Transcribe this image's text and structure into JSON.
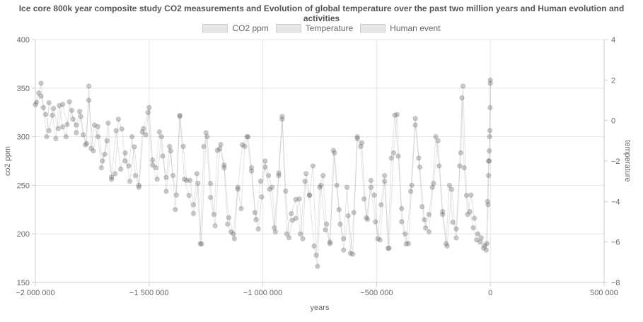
{
  "chart_data": {
    "type": "scatter",
    "title": "Ice core 800k year composite study CO2 measurements and Evolution of global temperature over the past two million years and Human evolution and activities",
    "xlabel": "years",
    "ylabel_left": "co2 ppm",
    "ylabel_right": "temperature",
    "xlim": [
      -2000000,
      500000
    ],
    "ylim_left": [
      150,
      400
    ],
    "ylim_right": [
      -8,
      4
    ],
    "x_ticks": [
      {
        "value": -2000000,
        "label": "−2 000 000"
      },
      {
        "value": -1500000,
        "label": "−1 500 000"
      },
      {
        "value": -1000000,
        "label": "−1 000 000"
      },
      {
        "value": -500000,
        "label": "−500 000"
      },
      {
        "value": 0,
        "label": "0"
      },
      {
        "value": 500000,
        "label": "500 000"
      }
    ],
    "y_left_ticks": [
      {
        "value": 150,
        "label": "150"
      },
      {
        "value": 200,
        "label": "200"
      },
      {
        "value": 250,
        "label": "250"
      },
      {
        "value": 300,
        "label": "300"
      },
      {
        "value": 350,
        "label": "350"
      },
      {
        "value": 400,
        "label": "400"
      }
    ],
    "y_right_ticks": [
      {
        "value": -8,
        "label": "−8"
      },
      {
        "value": -6,
        "label": "−6"
      },
      {
        "value": -4,
        "label": "−4"
      },
      {
        "value": -2,
        "label": "−2"
      },
      {
        "value": 0,
        "label": "0"
      },
      {
        "value": 2,
        "label": "2"
      },
      {
        "value": 4,
        "label": "4"
      }
    ],
    "grid": true,
    "legend_position": "top",
    "legend": [
      "CO2 ppm",
      "Temperature",
      "Human event"
    ],
    "point_color": "#666666",
    "series": [
      {
        "name": "CO2 ppm",
        "axis": "left",
        "points": [
          [
            -2000000,
            333
          ],
          [
            -1985000,
            345
          ],
          [
            -1975000,
            355
          ],
          [
            -1965000,
            330
          ],
          [
            -1950000,
            300
          ],
          [
            -1940000,
            335
          ],
          [
            -1925000,
            322
          ],
          [
            -1910000,
            298
          ],
          [
            -1895000,
            332
          ],
          [
            -1880000,
            310
          ],
          [
            -1865000,
            300
          ],
          [
            -1850000,
            336
          ],
          [
            -1835000,
            318
          ],
          [
            -1820000,
            312
          ],
          [
            -1805000,
            326
          ],
          [
            -1790000,
            302
          ],
          [
            -1775000,
            293
          ],
          [
            -1765000,
            352
          ],
          [
            -1755000,
            288
          ],
          [
            -1740000,
            312
          ],
          [
            -1725000,
            300
          ],
          [
            -1710000,
            268
          ],
          [
            -1695000,
            282
          ],
          [
            -1680000,
            314
          ],
          [
            -1665000,
            256
          ],
          [
            -1650000,
            262
          ],
          [
            -1635000,
            318
          ],
          [
            -1620000,
            308
          ],
          [
            -1605000,
            275
          ],
          [
            -1590000,
            270
          ],
          [
            -1575000,
            300
          ],
          [
            -1560000,
            260
          ],
          [
            -1545000,
            250
          ],
          [
            -1530000,
            305
          ],
          [
            -1515000,
            302
          ],
          [
            -1500000,
            330
          ],
          [
            -1485000,
            276
          ],
          [
            -1470000,
            268
          ],
          [
            -1455000,
            305
          ],
          [
            -1440000,
            280
          ],
          [
            -1425000,
            258
          ],
          [
            -1410000,
            290
          ],
          [
            -1395000,
            260
          ],
          [
            -1380000,
            240
          ],
          [
            -1365000,
            322
          ],
          [
            -1350000,
            290
          ],
          [
            -1335000,
            255
          ],
          [
            -1320000,
            255
          ],
          [
            -1305000,
            230
          ],
          [
            -1290000,
            262
          ],
          [
            -1275000,
            190
          ],
          [
            -1260000,
            290
          ],
          [
            -1245000,
            300
          ],
          [
            -1230000,
            252
          ],
          [
            -1215000,
            220
          ],
          [
            -1200000,
            286
          ],
          [
            -1185000,
            292
          ],
          [
            -1170000,
            268
          ],
          [
            -1155000,
            210
          ],
          [
            -1140000,
            202
          ],
          [
            -1125000,
            195
          ],
          [
            -1110000,
            246
          ],
          [
            -1095000,
            226
          ],
          [
            -1080000,
            290
          ],
          [
            -1065000,
            300
          ],
          [
            -1050000,
            268
          ],
          [
            -1035000,
            222
          ],
          [
            -1020000,
            205
          ],
          [
            -1005000,
            238
          ],
          [
            -990000,
            275
          ],
          [
            -975000,
            260
          ],
          [
            -960000,
            248
          ],
          [
            -945000,
            202
          ],
          [
            -930000,
            260
          ],
          [
            -915000,
            318
          ],
          [
            -900000,
            244
          ],
          [
            -885000,
            196
          ],
          [
            -870000,
            214
          ],
          [
            -855000,
            216
          ],
          [
            -840000,
            236
          ],
          [
            -825000,
            195
          ],
          [
            -810000,
            262
          ],
          [
            -795000,
            240
          ],
          [
            -780000,
            270
          ],
          [
            -765000,
            178
          ],
          [
            -750000,
            248
          ],
          [
            -735000,
            260
          ],
          [
            -720000,
            210
          ],
          [
            -705000,
            190
          ],
          [
            -690000,
            286
          ],
          [
            -675000,
            250
          ],
          [
            -660000,
            210
          ],
          [
            -645000,
            195
          ],
          [
            -630000,
            248
          ],
          [
            -615000,
            180
          ],
          [
            -600000,
            222
          ],
          [
            -585000,
            298
          ],
          [
            -570000,
            290
          ],
          [
            -555000,
            236
          ],
          [
            -540000,
            215
          ],
          [
            -525000,
            255
          ],
          [
            -510000,
            240
          ],
          [
            -495000,
            195
          ],
          [
            -480000,
            230
          ],
          [
            -465000,
            260
          ],
          [
            -450000,
            185
          ],
          [
            -435000,
            278
          ],
          [
            -420000,
            322
          ],
          [
            -405000,
            280
          ],
          [
            -390000,
            226
          ],
          [
            -375000,
            200
          ],
          [
            -360000,
            190
          ],
          [
            -345000,
            250
          ],
          [
            -330000,
            312
          ],
          [
            -315000,
            278
          ],
          [
            -300000,
            228
          ],
          [
            -285000,
            206
          ],
          [
            -270000,
            220
          ],
          [
            -255000,
            248
          ],
          [
            -240000,
            300
          ],
          [
            -225000,
            270
          ],
          [
            -210000,
            220
          ],
          [
            -195000,
            190
          ],
          [
            -180000,
            250
          ],
          [
            -165000,
            212
          ],
          [
            -150000,
            205
          ],
          [
            -135000,
            270
          ],
          [
            -125000,
            340
          ],
          [
            -115000,
            268
          ],
          [
            -100000,
            220
          ],
          [
            -85000,
            240
          ],
          [
            -70000,
            216
          ],
          [
            -55000,
            200
          ],
          [
            -40000,
            196
          ],
          [
            -25000,
            188
          ],
          [
            -15000,
            190
          ],
          [
            -10000,
            230
          ],
          [
            -8000,
            260
          ],
          [
            -5000,
            275
          ],
          [
            -3000,
            300
          ],
          [
            -1000,
            330
          ],
          [
            0,
            355
          ]
        ]
      },
      {
        "name": "Temperature",
        "axis": "right",
        "points": [
          [
            -1995000,
            0.9
          ],
          [
            -1975000,
            1.2
          ],
          [
            -1955000,
            0.3
          ],
          [
            -1940000,
            -0.5
          ],
          [
            -1920000,
            0.6
          ],
          [
            -1900000,
            -0.4
          ],
          [
            -1880000,
            0.8
          ],
          [
            -1860000,
            -0.2
          ],
          [
            -1840000,
            0.5
          ],
          [
            -1820000,
            -0.6
          ],
          [
            -1800000,
            0.2
          ],
          [
            -1780000,
            -1.2
          ],
          [
            -1765000,
            1.0
          ],
          [
            -1745000,
            -1.5
          ],
          [
            -1725000,
            -0.3
          ],
          [
            -1705000,
            -2.0
          ],
          [
            -1685000,
            -1.0
          ],
          [
            -1665000,
            -2.8
          ],
          [
            -1645000,
            -0.5
          ],
          [
            -1625000,
            -2.4
          ],
          [
            -1605000,
            -1.6
          ],
          [
            -1585000,
            -3.0
          ],
          [
            -1565000,
            -1.3
          ],
          [
            -1545000,
            -3.3
          ],
          [
            -1525000,
            -0.4
          ],
          [
            -1505000,
            0.4
          ],
          [
            -1485000,
            -2.2
          ],
          [
            -1465000,
            -2.9
          ],
          [
            -1445000,
            -0.8
          ],
          [
            -1425000,
            -3.5
          ],
          [
            -1405000,
            -1.5
          ],
          [
            -1385000,
            -4.4
          ],
          [
            -1365000,
            0.2
          ],
          [
            -1345000,
            -2.9
          ],
          [
            -1325000,
            -3.7
          ],
          [
            -1305000,
            -4.6
          ],
          [
            -1285000,
            -3.1
          ],
          [
            -1270000,
            -6.1
          ],
          [
            -1250000,
            -0.6
          ],
          [
            -1230000,
            -3.8
          ],
          [
            -1210000,
            -5.2
          ],
          [
            -1190000,
            -1.4
          ],
          [
            -1170000,
            -2.2
          ],
          [
            -1150000,
            -4.8
          ],
          [
            -1130000,
            -5.6
          ],
          [
            -1110000,
            -3.3
          ],
          [
            -1090000,
            -1.2
          ],
          [
            -1070000,
            -0.8
          ],
          [
            -1050000,
            -2.5
          ],
          [
            -1030000,
            -4.9
          ],
          [
            -1010000,
            -3.0
          ],
          [
            -990000,
            -2.3
          ],
          [
            -970000,
            -3.4
          ],
          [
            -950000,
            -5.3
          ],
          [
            -930000,
            -2.6
          ],
          [
            -915000,
            0.2
          ],
          [
            -895000,
            -5.6
          ],
          [
            -875000,
            -4.6
          ],
          [
            -855000,
            -3.9
          ],
          [
            -835000,
            -5.6
          ],
          [
            -815000,
            -3.0
          ],
          [
            -795000,
            -3.7
          ],
          [
            -775000,
            -6.2
          ],
          [
            -760000,
            -7.2
          ],
          [
            -745000,
            -3.2
          ],
          [
            -725000,
            -5.4
          ],
          [
            -705000,
            -6.0
          ],
          [
            -685000,
            -1.6
          ],
          [
            -665000,
            -4.4
          ],
          [
            -645000,
            -6.4
          ],
          [
            -625000,
            -4.7
          ],
          [
            -605000,
            -6.6
          ],
          [
            -585000,
            -0.8
          ],
          [
            -565000,
            -1.1
          ],
          [
            -545000,
            -4.8
          ],
          [
            -525000,
            -3.3
          ],
          [
            -505000,
            -5.0
          ],
          [
            -485000,
            -5.9
          ],
          [
            -465000,
            -3.0
          ],
          [
            -445000,
            -6.3
          ],
          [
            -425000,
            -1.6
          ],
          [
            -410000,
            0.3
          ],
          [
            -390000,
            -5.0
          ],
          [
            -370000,
            -6.1
          ],
          [
            -350000,
            -3.5
          ],
          [
            -330000,
            0.1
          ],
          [
            -310000,
            -2.3
          ],
          [
            -290000,
            -4.9
          ],
          [
            -270000,
            -5.5
          ],
          [
            -250000,
            -3.1
          ],
          [
            -230000,
            -1.0
          ],
          [
            -210000,
            -4.5
          ],
          [
            -190000,
            -6.2
          ],
          [
            -170000,
            -3.4
          ],
          [
            -150000,
            -5.8
          ],
          [
            -130000,
            -1.6
          ],
          [
            -120000,
            1.7
          ],
          [
            -105000,
            -3.7
          ],
          [
            -90000,
            -4.5
          ],
          [
            -75000,
            -5.3
          ],
          [
            -60000,
            -5.9
          ],
          [
            -45000,
            -6.0
          ],
          [
            -30000,
            -6.3
          ],
          [
            -18000,
            -6.4
          ],
          [
            -12000,
            -4.0
          ],
          [
            -8000,
            -2.0
          ],
          [
            -5000,
            -1.5
          ],
          [
            -2000,
            -0.5
          ],
          [
            0,
            2.0
          ]
        ]
      }
    ]
  }
}
